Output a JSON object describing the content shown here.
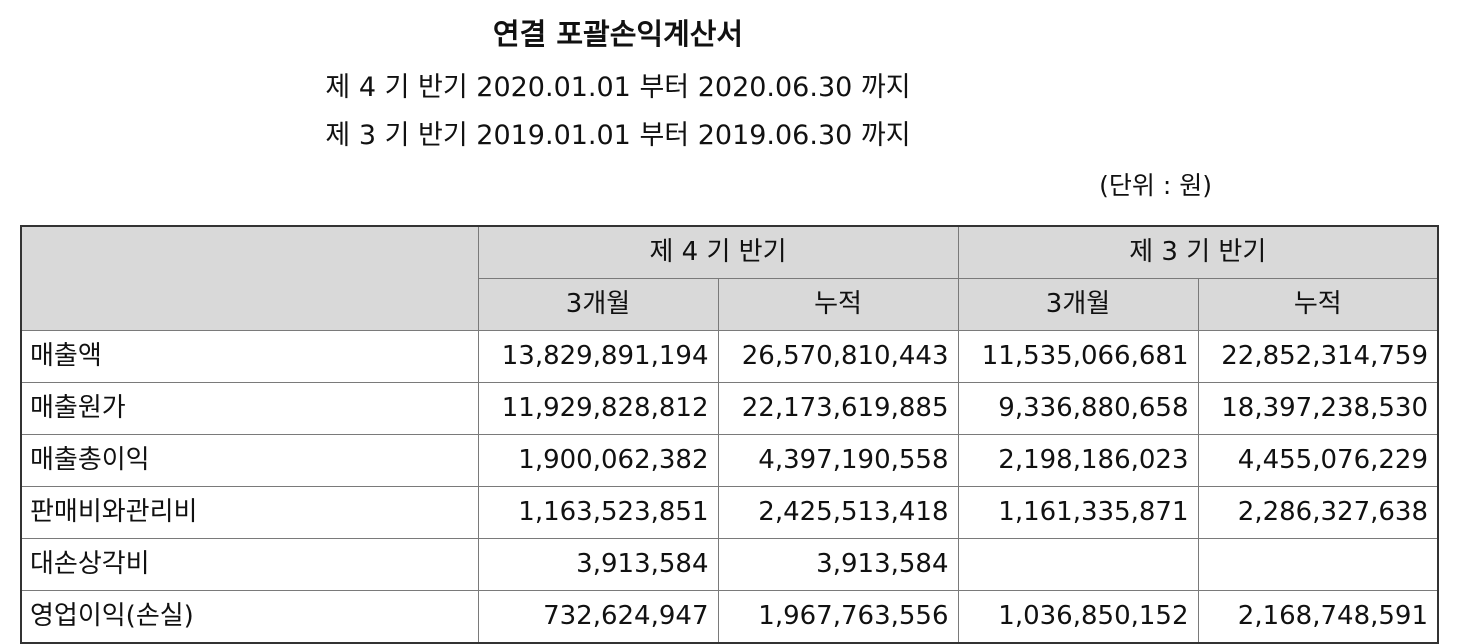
{
  "header": {
    "title": "연결 포괄손익계산서",
    "period_current": "제 4 기 반기 2020.01.01 부터 2020.06.30 까지",
    "period_prior": "제 3 기 반기 2019.01.01 부터 2019.06.30 까지",
    "unit": "(단위 : 원)"
  },
  "table": {
    "group_headers": [
      "제 4 기 반기",
      "제 3 기 반기"
    ],
    "sub_headers": [
      "3개월",
      "누적",
      "3개월",
      "누적"
    ],
    "rows": [
      {
        "label": "매출액",
        "values": [
          "13,829,891,194",
          "26,570,810,443",
          "11,535,066,681",
          "22,852,314,759"
        ]
      },
      {
        "label": "매출원가",
        "values": [
          "11,929,828,812",
          "22,173,619,885",
          "9,336,880,658",
          "18,397,238,530"
        ]
      },
      {
        "label": "매출총이익",
        "values": [
          "1,900,062,382",
          "4,397,190,558",
          "2,198,186,023",
          "4,455,076,229"
        ]
      },
      {
        "label": "판매비와관리비",
        "values": [
          "1,163,523,851",
          "2,425,513,418",
          "1,161,335,871",
          "2,286,327,638"
        ]
      },
      {
        "label": "대손상각비",
        "values": [
          "3,913,584",
          "3,913,584",
          "",
          ""
        ]
      },
      {
        "label": "영업이익(손실)",
        "values": [
          "732,624,947",
          "1,967,763,556",
          "1,036,850,152",
          "2,168,748,591"
        ]
      }
    ]
  }
}
